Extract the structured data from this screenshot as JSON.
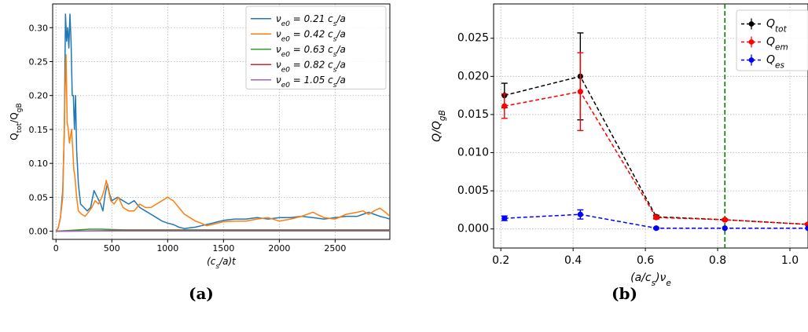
{
  "captions": {
    "a": "(a)",
    "b": "(b)"
  },
  "chart_data": [
    {
      "type": "line",
      "panel": "a",
      "xlabel": "(c_s/a)t",
      "ylabel": "Q_tot/Q_gB",
      "xlim": [
        -30,
        2990
      ],
      "ylim": [
        -0.012,
        0.335
      ],
      "xticks": [
        0,
        500,
        1000,
        1500,
        2000,
        2500
      ],
      "yticks": [
        0.0,
        0.05,
        0.1,
        0.15,
        0.2,
        0.25,
        0.3
      ],
      "ytick_labels": [
        "0.00",
        "0.05",
        "0.10",
        "0.15",
        "0.20",
        "0.25",
        "0.30"
      ],
      "grid": true,
      "legend_position": "top-right",
      "series": [
        {
          "name": "ν_e0 = 0.21 c_s/a",
          "color": "#1f77b4",
          "x": [
            0,
            20,
            40,
            60,
            75,
            85,
            95,
            105,
            115,
            125,
            135,
            145,
            155,
            165,
            175,
            185,
            200,
            220,
            250,
            280,
            310,
            340,
            370,
            400,
            420,
            440,
            460,
            480,
            500,
            550,
            600,
            650,
            700,
            750,
            800,
            850,
            900,
            950,
            1000,
            1050,
            1100,
            1150,
            1200,
            1250,
            1300,
            1350,
            1400,
            1450,
            1500,
            1600,
            1700,
            1800,
            1900,
            2000,
            2100,
            2200,
            2300,
            2400,
            2500,
            2600,
            2700,
            2750,
            2800,
            2850,
            2900,
            2950,
            2990
          ],
          "y": [
            0.0,
            0.005,
            0.02,
            0.06,
            0.15,
            0.32,
            0.28,
            0.3,
            0.27,
            0.32,
            0.28,
            0.2,
            0.2,
            0.15,
            0.2,
            0.12,
            0.07,
            0.04,
            0.035,
            0.03,
            0.035,
            0.06,
            0.05,
            0.04,
            0.03,
            0.055,
            0.07,
            0.055,
            0.045,
            0.05,
            0.045,
            0.04,
            0.045,
            0.035,
            0.03,
            0.025,
            0.02,
            0.015,
            0.012,
            0.01,
            0.006,
            0.004,
            0.005,
            0.006,
            0.008,
            0.01,
            0.012,
            0.014,
            0.016,
            0.018,
            0.018,
            0.02,
            0.018,
            0.02,
            0.02,
            0.022,
            0.02,
            0.018,
            0.02,
            0.022,
            0.022,
            0.025,
            0.028,
            0.025,
            0.022,
            0.02,
            0.018
          ]
        },
        {
          "name": "ν_e0 = 0.42 c_s/a",
          "color": "#ff7f0e",
          "x": [
            0,
            20,
            40,
            60,
            70,
            80,
            90,
            100,
            110,
            120,
            130,
            140,
            150,
            160,
            170,
            185,
            200,
            230,
            260,
            290,
            320,
            350,
            380,
            410,
            430,
            450,
            470,
            490,
            520,
            560,
            600,
            650,
            700,
            750,
            800,
            850,
            900,
            950,
            1000,
            1050,
            1100,
            1150,
            1200,
            1250,
            1300,
            1350,
            1400,
            1450,
            1500,
            1600,
            1700,
            1800,
            1900,
            2000,
            2100,
            2200,
            2300,
            2400,
            2500,
            2600,
            2700,
            2750,
            2800,
            2850,
            2900,
            2950,
            2990
          ],
          "y": [
            0.0,
            0.005,
            0.02,
            0.05,
            0.12,
            0.2,
            0.26,
            0.16,
            0.15,
            0.13,
            0.14,
            0.15,
            0.12,
            0.09,
            0.08,
            0.05,
            0.03,
            0.025,
            0.022,
            0.028,
            0.035,
            0.045,
            0.04,
            0.05,
            0.06,
            0.075,
            0.06,
            0.045,
            0.04,
            0.05,
            0.035,
            0.03,
            0.03,
            0.04,
            0.035,
            0.035,
            0.04,
            0.045,
            0.05,
            0.045,
            0.035,
            0.025,
            0.02,
            0.015,
            0.012,
            0.008,
            0.01,
            0.012,
            0.014,
            0.015,
            0.015,
            0.018,
            0.02,
            0.015,
            0.018,
            0.022,
            0.028,
            0.02,
            0.018,
            0.025,
            0.028,
            0.03,
            0.025,
            0.03,
            0.034,
            0.028,
            0.022
          ]
        },
        {
          "name": "ν_e0 = 0.63 c_s/a",
          "color": "#2ca02c",
          "x": [
            0,
            100,
            200,
            300,
            400,
            600,
            1000,
            1500,
            2000,
            2500,
            2990
          ],
          "y": [
            0.0,
            0.001,
            0.002,
            0.003,
            0.003,
            0.002,
            0.002,
            0.002,
            0.002,
            0.002,
            0.002
          ]
        },
        {
          "name": "ν_e0 = 0.82 c_s/a",
          "color": "#d62728",
          "x": [
            0,
            500,
            1000,
            1500,
            2000,
            2500,
            2990
          ],
          "y": [
            0.0,
            0.001,
            0.001,
            0.001,
            0.001,
            0.001,
            0.001
          ]
        },
        {
          "name": "ν_e0 = 1.05 c_s/a",
          "color": "#9467bd",
          "x": [
            0,
            500,
            1000,
            1500,
            2000,
            2500,
            2990
          ],
          "y": [
            0.0,
            0.0005,
            0.0005,
            0.0005,
            0.0005,
            0.0005,
            0.0005
          ]
        }
      ]
    },
    {
      "type": "line",
      "panel": "b",
      "xlabel": "(a/c_s)ν_e",
      "ylabel": "Q/Q_gB",
      "xlim": [
        0.18,
        1.05
      ],
      "ylim": [
        -0.0025,
        0.0295
      ],
      "xticks": [
        0.2,
        0.4,
        0.6,
        0.8,
        1.0
      ],
      "xtick_labels": [
        "0.2",
        "0.4",
        "0.6",
        "0.8",
        "1.0"
      ],
      "yticks": [
        0.0,
        0.005,
        0.01,
        0.015,
        0.02,
        0.025
      ],
      "ytick_labels": [
        "0.000",
        "0.005",
        "0.010",
        "0.015",
        "0.020",
        "0.025"
      ],
      "grid": true,
      "legend_position": "top-right",
      "vline": {
        "x": 0.82,
        "color": "#008000"
      },
      "series": [
        {
          "name": "Q_tot",
          "color": "#000000",
          "x": [
            0.21,
            0.42,
            0.63,
            0.82,
            1.05
          ],
          "y": [
            0.0175,
            0.02,
            0.0016,
            0.0012,
            0.0006
          ],
          "err": [
            0.0016,
            0.0057,
            0.0002,
            0.0001,
            0.0001
          ]
        },
        {
          "name": "Q_em",
          "color": "#ff0000",
          "x": [
            0.21,
            0.42,
            0.63,
            0.82,
            1.05
          ],
          "y": [
            0.0161,
            0.018,
            0.0015,
            0.0012,
            0.0006
          ],
          "err": [
            0.0016,
            0.0051,
            0.0002,
            0.0001,
            0.0001
          ]
        },
        {
          "name": "Q_es",
          "color": "#0000ff",
          "x": [
            0.21,
            0.42,
            0.63,
            0.82,
            1.05
          ],
          "y": [
            0.0014,
            0.0019,
            0.0001,
            0.0001,
            0.0001
          ],
          "err": [
            0.0003,
            0.0006,
            0.0001,
            0.0,
            0.0
          ]
        }
      ]
    }
  ]
}
